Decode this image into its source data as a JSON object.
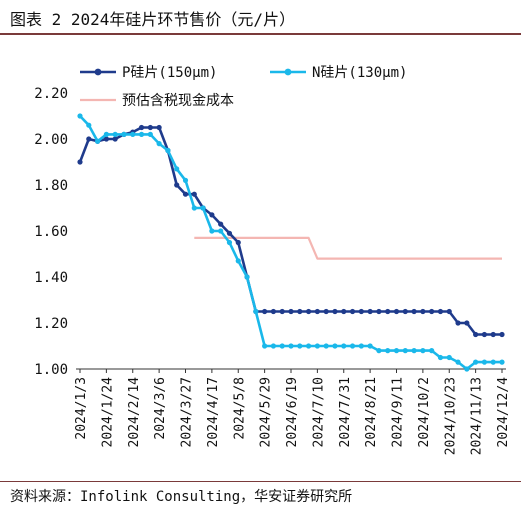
{
  "figure": {
    "title": "图表 2  2024年硅片环节售价（元/片）",
    "source": "资料来源：Infolink Consulting，华安证券研究所"
  },
  "colors": {
    "p_series": "#1f3b8c",
    "n_series": "#1ab8ea",
    "cost_line": "#f4b6b2",
    "rule": "#7a3a3a"
  },
  "chart_data": {
    "type": "line",
    "x": [
      "2024/1/3",
      "2024/1/10",
      "2024/1/17",
      "2024/1/24",
      "2024/1/31",
      "2024/2/7",
      "2024/2/14",
      "2024/2/21",
      "2024/2/28",
      "2024/3/6",
      "2024/3/13",
      "2024/3/20",
      "2024/3/27",
      "2024/4/3",
      "2024/4/10",
      "2024/4/17",
      "2024/4/24",
      "2024/5/1",
      "2024/5/8",
      "2024/5/15",
      "2024/5/22",
      "2024/5/29",
      "2024/6/5",
      "2024/6/12",
      "2024/6/19",
      "2024/6/26",
      "2024/7/3",
      "2024/7/10",
      "2024/7/17",
      "2024/7/24",
      "2024/7/31",
      "2024/8/7",
      "2024/8/14",
      "2024/8/21",
      "2024/8/28",
      "2024/9/4",
      "2024/9/11",
      "2024/9/18",
      "2024/9/25",
      "2024/10/2",
      "2024/10/9",
      "2024/10/16",
      "2024/10/23",
      "2024/10/30",
      "2024/11/6",
      "2024/11/13",
      "2024/11/20",
      "2024/11/27",
      "2024/12/4"
    ],
    "x_tick_labels": [
      "2024/1/3",
      "2024/1/24",
      "2024/2/14",
      "2024/3/6",
      "2024/3/27",
      "2024/4/17",
      "2024/5/8",
      "2024/5/29",
      "2024/6/19",
      "2024/7/10",
      "2024/7/31",
      "2024/8/21",
      "2024/9/11",
      "2024/10/2",
      "2024/10/23",
      "2024/11/13",
      "2024/12/4"
    ],
    "y_ticks": [
      "1.00",
      "1.20",
      "1.40",
      "1.60",
      "1.80",
      "2.00",
      "2.20"
    ],
    "ylim": [
      1.0,
      2.2
    ],
    "grid": false,
    "legend_position": "top",
    "series": [
      {
        "name": "P硅片(150μm)",
        "marker": true,
        "values": [
          1.9,
          2.0,
          1.99,
          2.0,
          2.0,
          2.02,
          2.03,
          2.05,
          2.05,
          2.05,
          1.95,
          1.8,
          1.76,
          1.76,
          1.7,
          1.67,
          1.63,
          1.59,
          1.55,
          1.4,
          1.25,
          1.25,
          1.25,
          1.25,
          1.25,
          1.25,
          1.25,
          1.25,
          1.25,
          1.25,
          1.25,
          1.25,
          1.25,
          1.25,
          1.25,
          1.25,
          1.25,
          1.25,
          1.25,
          1.25,
          1.25,
          1.25,
          1.25,
          1.2,
          1.2,
          1.15,
          1.15,
          1.15,
          1.15
        ]
      },
      {
        "name": "N硅片(130μm)",
        "marker": true,
        "values": [
          2.1,
          2.06,
          1.99,
          2.02,
          2.02,
          2.02,
          2.02,
          2.02,
          2.02,
          1.98,
          1.95,
          1.87,
          1.82,
          1.7,
          1.7,
          1.6,
          1.6,
          1.55,
          1.47,
          1.4,
          1.25,
          1.1,
          1.1,
          1.1,
          1.1,
          1.1,
          1.1,
          1.1,
          1.1,
          1.1,
          1.1,
          1.1,
          1.1,
          1.1,
          1.08,
          1.08,
          1.08,
          1.08,
          1.08,
          1.08,
          1.08,
          1.05,
          1.05,
          1.03,
          1.0,
          1.03,
          1.03,
          1.03,
          1.03
        ]
      },
      {
        "name": "预估含税现金成本",
        "marker": false,
        "values": [
          null,
          null,
          null,
          null,
          null,
          null,
          null,
          null,
          null,
          null,
          null,
          null,
          null,
          1.57,
          1.57,
          1.57,
          1.57,
          1.57,
          1.57,
          1.57,
          1.57,
          1.57,
          1.57,
          1.57,
          1.57,
          1.57,
          1.57,
          1.48,
          1.48,
          1.48,
          1.48,
          1.48,
          1.48,
          1.48,
          1.48,
          1.48,
          1.48,
          1.48,
          1.48,
          1.48,
          1.48,
          1.48,
          1.48,
          1.48,
          1.48,
          1.48,
          1.48,
          1.48,
          1.48
        ]
      }
    ]
  }
}
